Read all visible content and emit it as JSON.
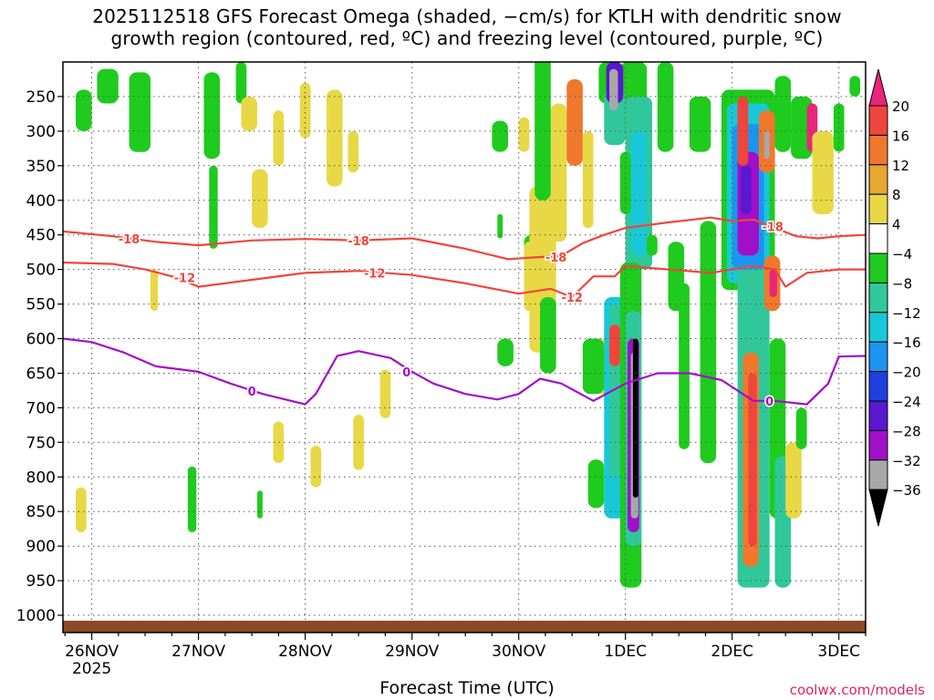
{
  "chart_data": {
    "type": "heatmap",
    "title_line1": "2025112518 GFS Forecast Omega (shaded, −cm/s) for KTLH with dendritic snow",
    "title_line2": "growth region (contoured, red, ºC) and freezing level (contoured, purple, ºC)",
    "xlabel": "Forecast Time (UTC)",
    "ylabel": "",
    "x_ticks": [
      "26NOV",
      "27NOV",
      "28NOV",
      "29NOV",
      "30NOV",
      "1DEC",
      "2DEC",
      "3DEC"
    ],
    "x_tick_year": "2025",
    "x_range_days": [
      -0.27,
      7.25
    ],
    "y_ticks": [
      250,
      300,
      350,
      400,
      450,
      500,
      550,
      600,
      650,
      700,
      750,
      800,
      850,
      900,
      950,
      1000
    ],
    "y_range_hpa": [
      200,
      1025
    ],
    "colorbar": {
      "labels": [
        "20",
        "16",
        "12",
        "8",
        "4",
        "−4",
        "−8",
        "−12",
        "−16",
        "−20",
        "−24",
        "−28",
        "−32",
        "−36"
      ],
      "colors": [
        "#e8267a",
        "#f0453c",
        "#f0782c",
        "#e8a733",
        "#e8d846",
        "#ffffff",
        "#1ecb1e",
        "#30c89a",
        "#18c8d8",
        "#1a96f0",
        "#1e40e0",
        "#5a18d0",
        "#a010c8",
        "#a8a8a8",
        "#000000"
      ]
    },
    "series": [
      {
        "name": "-18",
        "color": "#f0453c",
        "x": [
          -0.27,
          0.2,
          0.6,
          1.0,
          1.5,
          2.0,
          2.5,
          3.0,
          3.5,
          3.9,
          4.2,
          4.4,
          4.6,
          4.8,
          5.0,
          5.4,
          5.8,
          6.0,
          6.2,
          6.4,
          6.6,
          6.8,
          7.0,
          7.25
        ],
        "y": [
          445,
          452,
          460,
          465,
          458,
          456,
          458,
          455,
          470,
          485,
          482,
          480,
          462,
          450,
          440,
          432,
          425,
          430,
          428,
          440,
          452,
          455,
          452,
          450
        ],
        "labels": [
          {
            "x": 0.35,
            "y": 456,
            "text": "-18"
          },
          {
            "x": 2.5,
            "y": 458,
            "text": "-18"
          },
          {
            "x": 4.35,
            "y": 482,
            "text": "-18"
          },
          {
            "x": 6.38,
            "y": 438,
            "text": "-18"
          }
        ]
      },
      {
        "name": "-12",
        "color": "#f0453c",
        "x": [
          -0.27,
          0.2,
          0.5,
          0.8,
          1.0,
          1.5,
          2.0,
          2.5,
          3.0,
          3.5,
          4.0,
          4.3,
          4.5,
          4.7,
          4.9,
          5.0,
          5.4,
          5.8,
          6.2,
          6.4,
          6.5,
          6.7,
          7.0,
          7.25
        ],
        "y": [
          490,
          492,
          500,
          512,
          525,
          515,
          505,
          502,
          508,
          520,
          535,
          528,
          540,
          510,
          510,
          495,
          500,
          505,
          495,
          500,
          525,
          505,
          500,
          500
        ],
        "labels": [
          {
            "x": 0.87,
            "y": 512,
            "text": "-12"
          },
          {
            "x": 2.65,
            "y": 505,
            "text": "-12"
          },
          {
            "x": 4.5,
            "y": 540,
            "text": "-12"
          }
        ]
      },
      {
        "name": "0",
        "color": "#a010c8",
        "x": [
          -0.27,
          0.0,
          0.3,
          0.6,
          1.0,
          1.3,
          1.6,
          2.0,
          2.1,
          2.3,
          2.5,
          2.8,
          3.0,
          3.2,
          3.5,
          3.8,
          4.0,
          4.2,
          4.4,
          4.7,
          5.0,
          5.3,
          5.6,
          5.9,
          6.2,
          6.4,
          6.7,
          6.9,
          7.0,
          7.25
        ],
        "y": [
          600,
          605,
          620,
          640,
          648,
          665,
          680,
          695,
          680,
          625,
          618,
          628,
          648,
          665,
          680,
          688,
          680,
          658,
          665,
          690,
          665,
          650,
          650,
          660,
          690,
          690,
          695,
          665,
          626,
          625
        ],
        "labels": [
          {
            "x": 1.5,
            "y": 676,
            "text": "0"
          },
          {
            "x": 2.95,
            "y": 648,
            "text": "0"
          },
          {
            "x": 6.35,
            "y": 690,
            "text": "0"
          }
        ]
      }
    ]
  },
  "watermark": "coolwx.com/models"
}
